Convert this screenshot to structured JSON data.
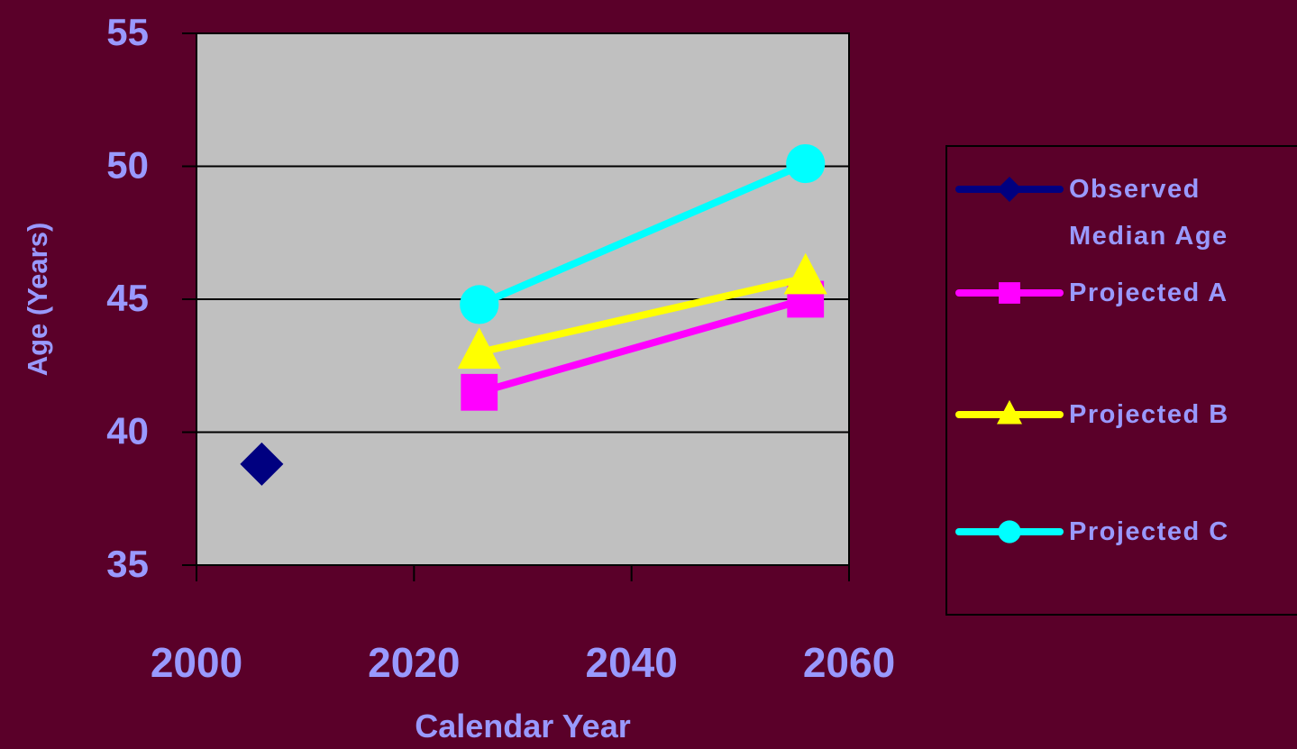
{
  "colors": {
    "background": "#5a0029",
    "plot_area": "#c0c0c0",
    "text": "#9999ff",
    "grid": "#000000"
  },
  "chart_data": {
    "type": "line",
    "title": "",
    "xlabel": "Calendar Year",
    "ylabel": "Age (Years)",
    "xlim": [
      2000,
      2060
    ],
    "ylim": [
      35,
      55
    ],
    "xticks": [
      2000,
      2020,
      2040,
      2060
    ],
    "yticks": [
      35,
      40,
      45,
      50,
      55
    ],
    "grid": "horizontal",
    "legend_position": "right",
    "series": [
      {
        "name": "Observed Median Age",
        "legend_lines": [
          "Observed",
          "Median Age"
        ],
        "color": "#000080",
        "marker": "diamond",
        "points": [
          [
            2006,
            38.8
          ]
        ]
      },
      {
        "name": "Projected A",
        "legend_lines": [
          "Projected A"
        ],
        "color": "#ff00ff",
        "marker": "square",
        "points": [
          [
            2026,
            41.5
          ],
          [
            2056,
            45.0
          ]
        ]
      },
      {
        "name": "Projected B",
        "legend_lines": [
          "Projected B"
        ],
        "color": "#ffff00",
        "marker": "triangle",
        "points": [
          [
            2026,
            43.0
          ],
          [
            2056,
            45.8
          ]
        ]
      },
      {
        "name": "Projected C",
        "legend_lines": [
          "Projected C"
        ],
        "color": "#00ffff",
        "marker": "circle",
        "points": [
          [
            2026,
            44.8
          ],
          [
            2056,
            50.1
          ]
        ]
      }
    ]
  }
}
